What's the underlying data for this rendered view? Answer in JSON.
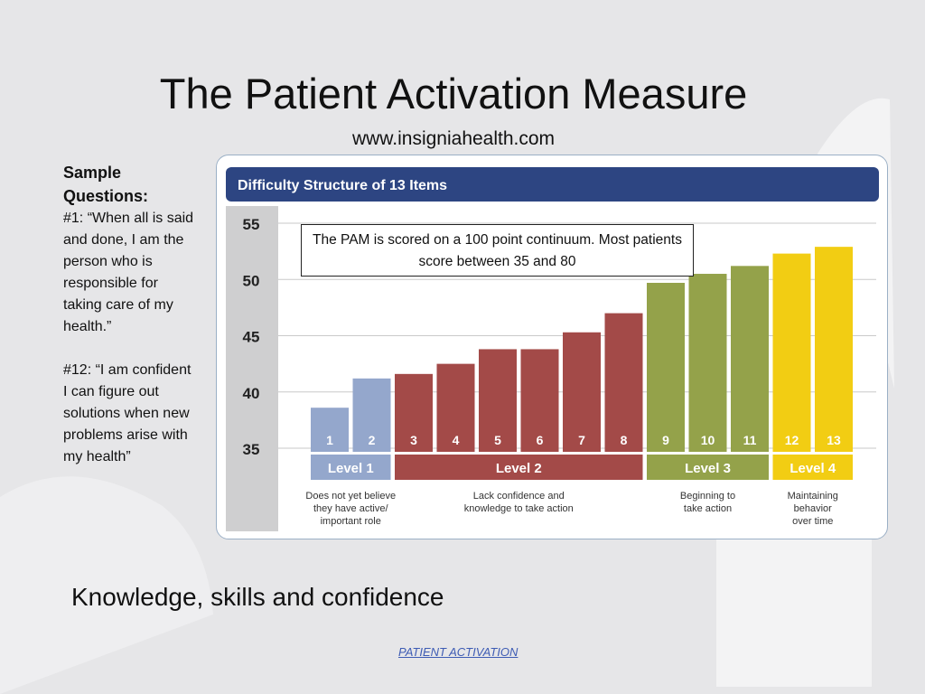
{
  "slide": {
    "title": "The Patient Activation Measure",
    "subtitle": "www.insigniahealth.com",
    "tagline": "Knowledge, skills and confidence",
    "footer": "PATIENT ACTIVATION"
  },
  "sample": {
    "heading": "Sample Questions:",
    "q1": "#1: “When all is said and done, I am the person who is responsible for taking care of my health.”",
    "q12": "#12: “I am confident I can figure out solutions when new problems arise with my health”"
  },
  "note": "The PAM is scored on a 100 point continuum. Most patients score between 35 and 80",
  "colors": {
    "header_bar": "#2d4582",
    "level1": "#94a7cc",
    "level2": "#a34a48",
    "level3": "#94a24a",
    "level4": "#f2cd13",
    "footer_link": "#3e5cb4"
  },
  "chart_data": {
    "type": "bar",
    "title": "Difficulty Structure of 13 Items",
    "categories": [
      "1",
      "2",
      "3",
      "4",
      "5",
      "6",
      "7",
      "8",
      "9",
      "10",
      "11",
      "12",
      "13"
    ],
    "values": [
      38.6,
      41.2,
      41.6,
      42.5,
      43.8,
      43.8,
      45.3,
      47.0,
      49.7,
      50.5,
      51.2,
      52.3,
      52.9
    ],
    "ylim": [
      35,
      56
    ],
    "yticks": [
      "35",
      "40",
      "45",
      "50",
      "55"
    ],
    "grid": true,
    "levels": [
      {
        "label": "Level 1",
        "items": [
          "1",
          "2"
        ],
        "color": "#94a7cc",
        "description": [
          "Does not yet believe",
          "they have active/",
          "important role"
        ]
      },
      {
        "label": "Level 2",
        "items": [
          "3",
          "4",
          "5",
          "6",
          "7",
          "8"
        ],
        "color": "#a34a48",
        "description": [
          "Lack confidence and",
          "knowledge to take action"
        ]
      },
      {
        "label": "Level 3",
        "items": [
          "9",
          "10",
          "11"
        ],
        "color": "#94a24a",
        "description": [
          "Beginning to",
          "take action"
        ]
      },
      {
        "label": "Level 4",
        "items": [
          "12",
          "13"
        ],
        "color": "#f2cd13",
        "description": [
          "Maintaining",
          "behavior",
          "over time"
        ]
      }
    ]
  }
}
